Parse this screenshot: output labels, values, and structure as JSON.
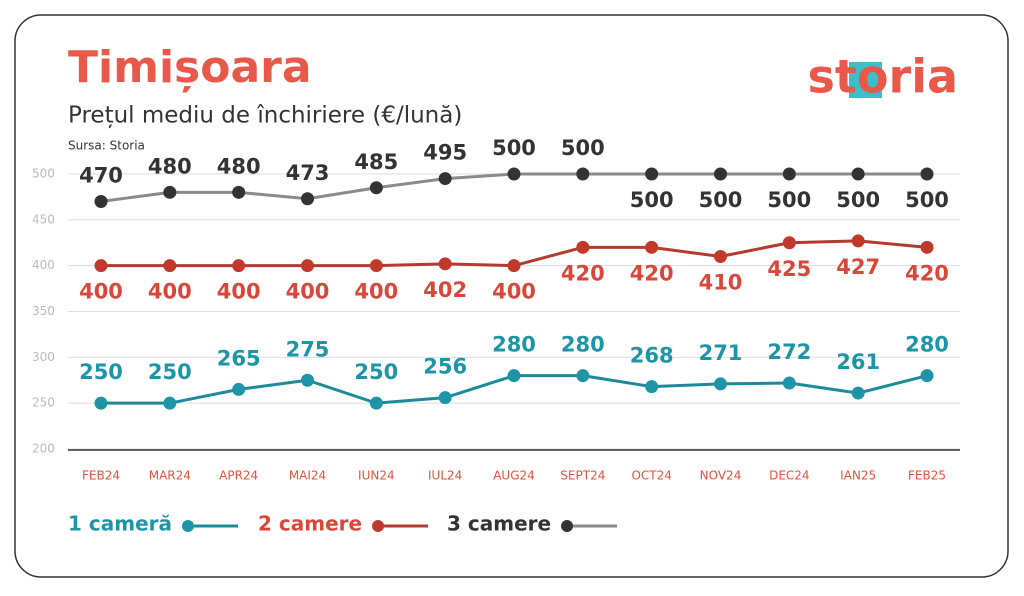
{
  "chart_data": {
    "type": "line",
    "title": "Timișoara",
    "subtitle": "Prețul mediu de închiriere (€/lună)",
    "source": "Sursa: Storia",
    "brand": "storia",
    "categories": [
      "FEB24",
      "MAR24",
      "APR24",
      "MAI24",
      "IUN24",
      "IUL24",
      "AUG24",
      "SEPT24",
      "OCT24",
      "NOV24",
      "DEC24",
      "IAN25",
      "FEB25"
    ],
    "series": [
      {
        "name": "1 cameră",
        "color": "#1e95a6",
        "values": [
          250,
          250,
          265,
          275,
          250,
          256,
          280,
          280,
          268,
          271,
          272,
          261,
          280
        ]
      },
      {
        "name": "2 camere",
        "color": "#d8473a",
        "values": [
          400,
          400,
          400,
          400,
          400,
          402,
          400,
          420,
          420,
          410,
          425,
          427,
          420
        ]
      },
      {
        "name": "3 camere",
        "color": "#333333",
        "values": [
          470,
          480,
          480,
          473,
          485,
          495,
          500,
          500,
          500,
          500,
          500,
          500,
          500
        ]
      }
    ],
    "ylim": [
      200,
      500
    ],
    "yticks": [
      200,
      250,
      300,
      350,
      400,
      450,
      500
    ],
    "grid": true
  }
}
